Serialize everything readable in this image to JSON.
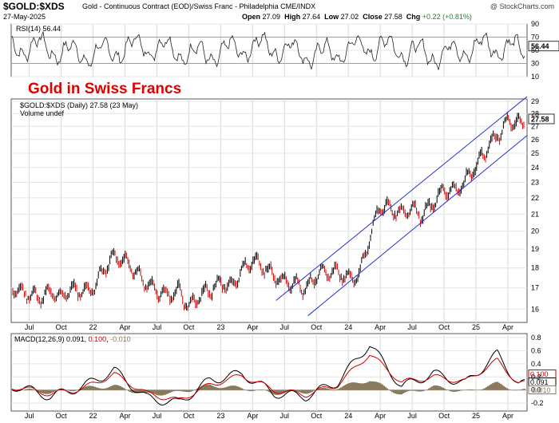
{
  "header": {
    "symbol": "$GOLD:$XDS",
    "description": "Gold - Continuous Contract (EOD)/Swiss Franc - Philadelphia  CME/INDX",
    "watermark": "@ StockCharts.com",
    "date": "27-May-2025",
    "open_label": "Open",
    "open": "27.09",
    "high_label": "High",
    "high": "27.64",
    "low_label": "Low",
    "low": "27.02",
    "close_label": "Close",
    "close": "27.58",
    "chg_label": "Chg",
    "chg": "+0.22 (+0.81%)"
  },
  "colors": {
    "frame": "#555555",
    "price_up": "#000000",
    "price_down": "#cc0000",
    "channel": "#1f2fd0",
    "rsi_line": "#222222",
    "rsi_fill_over": "#c8b8a0",
    "macd_line": "#000000",
    "signal_line": "#cc0000",
    "histogram": "#8b7a5c",
    "overlay_title": "#e00000"
  },
  "chart_data": [
    {
      "type": "line",
      "panel": "rsi",
      "label": "RSI(14) 56.44",
      "last_value": "56.44",
      "y_ticks": [
        "90",
        "70",
        "50",
        "30",
        "10"
      ],
      "ylim": [
        10,
        90
      ],
      "reference_lines": [
        70,
        30
      ]
    },
    {
      "type": "bar",
      "panel": "price",
      "title": "Gold in Swiss Francs",
      "legend": [
        "$GOLD:$XDS (Daily) 27.58 (23 May)",
        "Volume undef"
      ],
      "last_value": "27.58",
      "y_ticks": [
        "29",
        "28",
        "27",
        "26",
        "25",
        "24",
        "23",
        "22",
        "21",
        "20",
        "19",
        "18",
        "17",
        "16"
      ],
      "ylim": [
        15.4,
        29.2
      ],
      "scale": "log",
      "x_ticks": [
        "Jul",
        "Oct",
        "22",
        "Apr",
        "Jul",
        "Oct",
        "23",
        "Apr",
        "Jul",
        "Oct",
        "24",
        "Apr",
        "Jul",
        "Oct",
        "25",
        "Apr"
      ],
      "series": [
        {
          "x": [
            "2021-05",
            "2021-06",
            "2021-07",
            "2021-08",
            "2021-09",
            "2021-10",
            "2021-11",
            "2021-12",
            "2022-01",
            "2022-02",
            "2022-03",
            "2022-04",
            "2022-05",
            "2022-06",
            "2022-07",
            "2022-08",
            "2022-09",
            "2022-10",
            "2022-11",
            "2022-12",
            "2023-01",
            "2023-02",
            "2023-03",
            "2023-04",
            "2023-05",
            "2023-06",
            "2023-07",
            "2023-08",
            "2023-09",
            "2023-10",
            "2023-11",
            "2023-12",
            "2024-01",
            "2024-02",
            "2024-03",
            "2024-04",
            "2024-05",
            "2024-06",
            "2024-07",
            "2024-08",
            "2024-09",
            "2024-10",
            "2024-11",
            "2024-12",
            "2025-01",
            "2025-02",
            "2025-03",
            "2025-04",
            "2025-05"
          ],
          "values": [
            17.2,
            16.9,
            16.7,
            16.5,
            16.8,
            16.6,
            16.9,
            16.8,
            17.0,
            17.9,
            18.6,
            18.4,
            17.8,
            17.2,
            16.9,
            16.6,
            16.9,
            16.1,
            16.6,
            16.9,
            17.3,
            17.0,
            17.9,
            18.4,
            18.1,
            17.6,
            17.3,
            17.2,
            17.0,
            17.6,
            17.8,
            17.8,
            17.5,
            17.6,
            19.6,
            21.5,
            21.4,
            21.0,
            21.4,
            20.9,
            21.7,
            22.6,
            22.4,
            23.1,
            24.1,
            25.3,
            26.3,
            27.4,
            27.3
          ]
        }
      ]
    },
    {
      "type": "line",
      "panel": "macd",
      "label": "MACD(12,26,9) 0.091, 0.100, -0.010",
      "legend_name": "MACD(12,26,9)",
      "legend_values": [
        "0.091",
        "0.100",
        "-0.010"
      ],
      "y_ticks": [
        "0.8",
        "0.6",
        "0.4",
        "0.2",
        "0.0",
        "-0.2"
      ],
      "ylim": [
        -0.32,
        0.86
      ],
      "x_ticks": [
        "Jul",
        "Oct",
        "22",
        "Apr",
        "Jul",
        "Oct",
        "23",
        "Apr",
        "Jul",
        "Oct",
        "24",
        "Apr",
        "Jul",
        "Oct",
        "25",
        "Apr"
      ],
      "last_values": [
        "0.100",
        "0.091",
        "-0.010"
      ],
      "series": [
        {
          "name": "MACD",
          "x": [
            "2021-06",
            "2021-09",
            "2021-12",
            "2022-03",
            "2022-06",
            "2022-09",
            "2022-12",
            "2023-03",
            "2023-06",
            "2023-09",
            "2023-12",
            "2024-03",
            "2024-06",
            "2024-09",
            "2024-12",
            "2025-03",
            "2025-05"
          ],
          "values": [
            0.05,
            -0.1,
            0.05,
            0.3,
            -0.12,
            -0.2,
            0.15,
            0.25,
            -0.05,
            -0.1,
            0.12,
            0.7,
            0.05,
            0.25,
            0.1,
            0.55,
            0.09
          ]
        },
        {
          "name": "Signal",
          "x": [
            "2021-06",
            "2021-09",
            "2021-12",
            "2022-03",
            "2022-06",
            "2022-09",
            "2022-12",
            "2023-03",
            "2023-06",
            "2023-09",
            "2023-12",
            "2024-03",
            "2024-06",
            "2024-09",
            "2024-12",
            "2025-03",
            "2025-05"
          ],
          "values": [
            0.04,
            -0.06,
            0.02,
            0.24,
            -0.05,
            -0.16,
            0.08,
            0.22,
            0.0,
            -0.07,
            0.08,
            0.55,
            0.12,
            0.2,
            0.13,
            0.45,
            0.1
          ]
        }
      ]
    }
  ]
}
